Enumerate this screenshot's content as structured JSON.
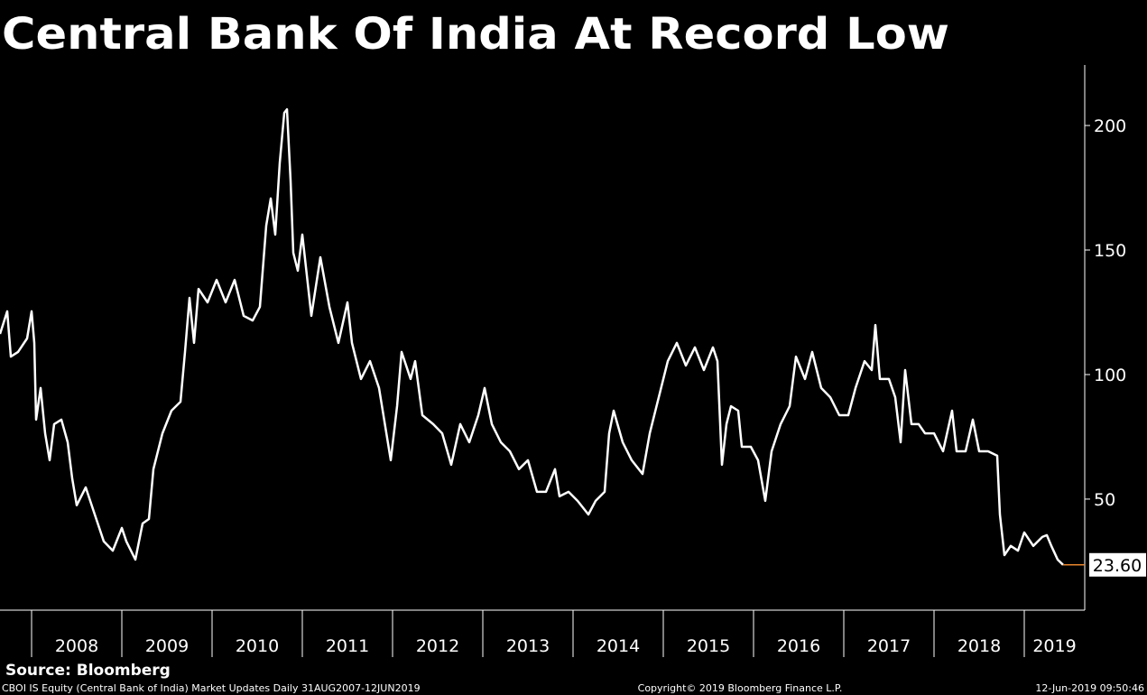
{
  "chart_data": {
    "type": "line",
    "title": "Central Bank Of India At Record Low",
    "x": [
      2007.65,
      2007.73,
      2007.77,
      2007.85,
      2007.95,
      2008.0,
      2008.03,
      2008.05,
      2008.1,
      2008.15,
      2008.2,
      2008.25,
      2008.33,
      2008.4,
      2008.45,
      2008.5,
      2008.6,
      2008.7,
      2008.8,
      2008.9,
      2009.0,
      2009.05,
      2009.15,
      2009.23,
      2009.3,
      2009.35,
      2009.45,
      2009.55,
      2009.65,
      2009.7,
      2009.75,
      2009.8,
      2009.85,
      2009.95,
      2010.05,
      2010.15,
      2010.25,
      2010.35,
      2010.45,
      2010.53,
      2010.6,
      2010.65,
      2010.7,
      2010.75,
      2010.8,
      2010.83,
      2010.87,
      2010.9,
      2010.95,
      2011.0,
      2011.1,
      2011.2,
      2011.3,
      2011.4,
      2011.5,
      2011.55,
      2011.65,
      2011.75,
      2011.85,
      2011.98,
      2012.05,
      2012.1,
      2012.2,
      2012.25,
      2012.33,
      2012.45,
      2012.55,
      2012.65,
      2012.75,
      2012.85,
      2012.95,
      2013.02,
      2013.1,
      2013.2,
      2013.3,
      2013.4,
      2013.5,
      2013.6,
      2013.7,
      2013.8,
      2013.85,
      2013.95,
      2014.05,
      2014.17,
      2014.25,
      2014.35,
      2014.4,
      2014.45,
      2014.55,
      2014.65,
      2014.77,
      2014.85,
      2014.95,
      2015.05,
      2015.15,
      2015.25,
      2015.35,
      2015.45,
      2015.55,
      2015.6,
      2015.65,
      2015.7,
      2015.75,
      2015.83,
      2015.87,
      2015.97,
      2016.05,
      2016.13,
      2016.2,
      2016.3,
      2016.4,
      2016.47,
      2016.57,
      2016.65,
      2016.75,
      2016.85,
      2016.95,
      2017.05,
      2017.13,
      2017.23,
      2017.31,
      2017.35,
      2017.4,
      2017.5,
      2017.57,
      2017.63,
      2017.68,
      2017.75,
      2017.83,
      2017.9,
      2018.0,
      2018.1,
      2018.2,
      2018.25,
      2018.35,
      2018.43,
      2018.5,
      2018.6,
      2018.7,
      2018.73,
      2018.78,
      2018.85,
      2018.93,
      2019.0,
      2019.1,
      2019.2,
      2019.25,
      2019.3,
      2019.37,
      2019.43
    ],
    "series": [
      {
        "name": "CBOI IS Equity",
        "color": "#ffffff",
        "values": [
          116.3,
          125.4,
          107.2,
          109.1,
          114.5,
          125.4,
          112.7,
          81.9,
          94.6,
          76.4,
          65.6,
          80.1,
          81.9,
          72.8,
          58.3,
          47.5,
          54.7,
          43.8,
          33.0,
          29.3,
          38.4,
          33.0,
          25.7,
          40.2,
          42.0,
          62.0,
          76.4,
          85.5,
          89.1,
          109.1,
          130.8,
          112.7,
          134.4,
          129.0,
          138.0,
          129.0,
          138.0,
          123.6,
          121.7,
          127.2,
          159.8,
          170.7,
          156.2,
          185.1,
          205.1,
          206.5,
          177.9,
          148.9,
          141.7,
          156.2,
          123.6,
          147.1,
          127.2,
          112.7,
          129.0,
          112.7,
          98.2,
          105.4,
          94.6,
          65.6,
          87.3,
          109.1,
          98.2,
          105.4,
          83.7,
          80.1,
          76.4,
          63.8,
          80.1,
          72.8,
          83.7,
          94.6,
          80.1,
          72.8,
          69.2,
          62.0,
          65.6,
          52.9,
          52.9,
          62.0,
          51.1,
          52.9,
          49.3,
          43.8,
          49.3,
          52.9,
          76.4,
          85.5,
          72.8,
          65.6,
          60.1,
          76.4,
          90.9,
          105.4,
          112.7,
          103.6,
          110.9,
          101.8,
          110.9,
          105.4,
          63.8,
          80.1,
          87.3,
          85.5,
          71.0,
          71.0,
          65.6,
          49.3,
          69.2,
          80.1,
          87.3,
          107.2,
          98.2,
          109.1,
          94.6,
          90.9,
          83.7,
          83.7,
          94.6,
          105.4,
          101.8,
          119.9,
          98.2,
          98.2,
          90.9,
          72.8,
          101.8,
          80.1,
          80.1,
          76.4,
          76.4,
          69.2,
          85.5,
          69.2,
          69.2,
          81.9,
          69.2,
          69.2,
          67.4,
          43.8,
          27.5,
          31.2,
          29.3,
          36.6,
          31.2,
          34.8,
          35.5,
          31.2,
          25.7,
          23.6
        ]
      }
    ],
    "last_value": {
      "value": 23.6,
      "label": "23.60"
    },
    "last_value_color": "#e8842c",
    "xlim": [
      2007.65,
      2019.67
    ],
    "xticks": [
      2008,
      2009,
      2010,
      2011,
      2012,
      2013,
      2014,
      2015,
      2016,
      2017,
      2018,
      2019
    ],
    "ylim": [
      5.4,
      224.3
    ],
    "yticks": [
      50,
      100,
      150,
      200
    ],
    "grid": false
  },
  "footer": {
    "source": "Source: Bloomberg",
    "description": "CBOI IS Equity (Central Bank of India) Market Updates  Daily 31AUG2007-12JUN2019",
    "copyright": "Copyright© 2019 Bloomberg Finance L.P.",
    "timestamp": "12-Jun-2019 09:50:46"
  }
}
